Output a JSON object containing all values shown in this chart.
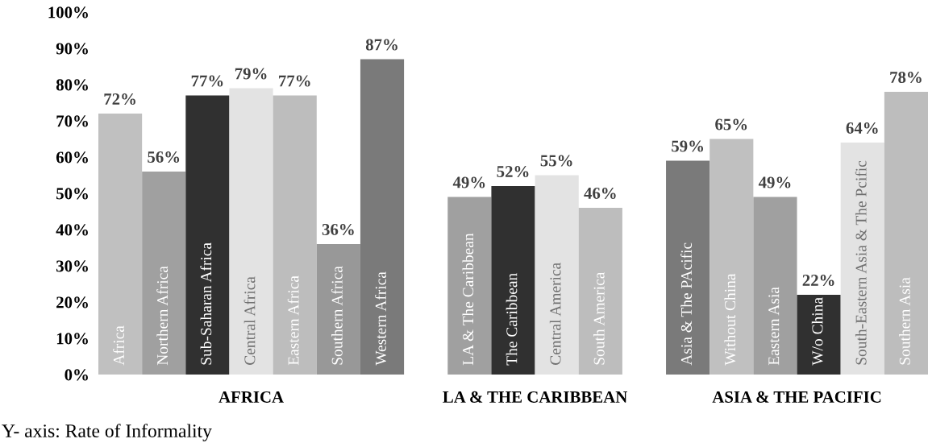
{
  "chart_data": {
    "type": "bar",
    "categories": [
      "Africa",
      "Northern Africa",
      "Sub-Saharan Africa",
      "Central Africa",
      "Eastern Africa",
      "Southern Africa",
      "Western Africa",
      null,
      "LA & The Caribbean",
      "The Caribbean",
      "Central America",
      "South America",
      null,
      "Asia & The PAcific",
      "Without China",
      "Eastern Asia",
      "W/o China",
      "South-Eastern Asia & The Pcific",
      "Southern Asia"
    ],
    "values": [
      72,
      56,
      77,
      79,
      77,
      36,
      87,
      null,
      49,
      52,
      55,
      46,
      null,
      59,
      65,
      49,
      22,
      64,
      78
    ],
    "value_labels": [
      "72%",
      "56%",
      "77%",
      "79%",
      "77%",
      "36%",
      "87%",
      null,
      "49%",
      "52%",
      "55%",
      "46%",
      null,
      "59%",
      "65%",
      "49%",
      "22%",
      "64%",
      "78%"
    ],
    "colors": [
      "#c0c0c0",
      "#a0a0a0",
      "#303030",
      "#e3e3e3",
      "#bdbdbd",
      "#989898",
      "#7a7a7a",
      "#ffffff",
      "#a0a0a0",
      "#303030",
      "#e3e3e3",
      "#bdbdbd",
      "#ffffff",
      "#7a7a7a",
      "#c0c0c0",
      "#a0a0a0",
      "#303030",
      "#e3e3e3",
      "#bdbdbd"
    ],
    "ylim": [
      0,
      100
    ],
    "yticks": [
      {
        "value": 0,
        "label": "0%"
      },
      {
        "value": 10,
        "label": "10%"
      },
      {
        "value": 20,
        "label": "20%"
      },
      {
        "value": 30,
        "label": "30%"
      },
      {
        "value": 40,
        "label": "40%"
      },
      {
        "value": 50,
        "label": "50%"
      },
      {
        "value": 60,
        "label": "60%"
      },
      {
        "value": 70,
        "label": "70%"
      },
      {
        "value": 80,
        "label": "80%"
      },
      {
        "value": 90,
        "label": "90%"
      },
      {
        "value": 100,
        "label": "100%"
      }
    ],
    "tick_labels": "y",
    "grid": false,
    "annotations": [
      "AFRICA",
      "LA & THE CARIBBEAN",
      "ASIA & THE PACIFIC",
      "Y- axis: Rate of Informality"
    ]
  }
}
